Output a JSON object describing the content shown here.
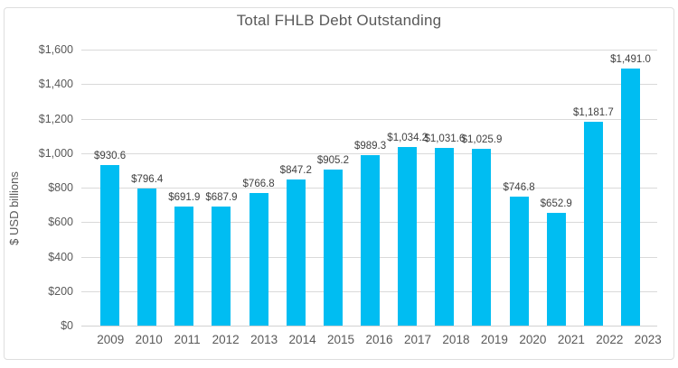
{
  "chart_data": {
    "type": "bar",
    "title": "Total FHLB Debt Outstanding",
    "xlabel": "",
    "ylabel": "$ USD billions",
    "categories": [
      "2009",
      "2010",
      "2011",
      "2012",
      "2013",
      "2014",
      "2015",
      "2016",
      "2017",
      "2018",
      "2019",
      "2020",
      "2021",
      "2022",
      "2023"
    ],
    "values": [
      930.6,
      796.4,
      691.9,
      687.9,
      766.8,
      847.2,
      905.2,
      989.3,
      1034.2,
      1031.6,
      1025.9,
      746.8,
      652.9,
      1181.7,
      1491.0
    ],
    "bar_labels": [
      "$930.6",
      "$796.4",
      "$691.9",
      "$687.9",
      "$766.8",
      "$847.2",
      "$905.2",
      "$989.3",
      "$1,034.2",
      "$1,031.6",
      "$1,025.9",
      "$746.8",
      "$652.9",
      "$1,181.7",
      "$1,491.0"
    ],
    "ylim": [
      0,
      1600
    ],
    "yticks": [
      {
        "value": 0,
        "label": "$0"
      },
      {
        "value": 200,
        "label": "$200"
      },
      {
        "value": 400,
        "label": "$400"
      },
      {
        "value": 600,
        "label": "$600"
      },
      {
        "value": 800,
        "label": "$800"
      },
      {
        "value": 1000,
        "label": "$1,000"
      },
      {
        "value": 1200,
        "label": "$1,200"
      },
      {
        "value": 1400,
        "label": "$1,400"
      },
      {
        "value": 1600,
        "label": "$1,600"
      }
    ],
    "grid": "horizontal",
    "legend": "none"
  },
  "colors": {
    "bar": "#00bdf2",
    "grid": "#d9d9d9",
    "axis_line": "#d2d2d2",
    "axis_text": "#595959",
    "title_text": "#595959",
    "value_label_text": "#404040",
    "border": "#dedede"
  }
}
